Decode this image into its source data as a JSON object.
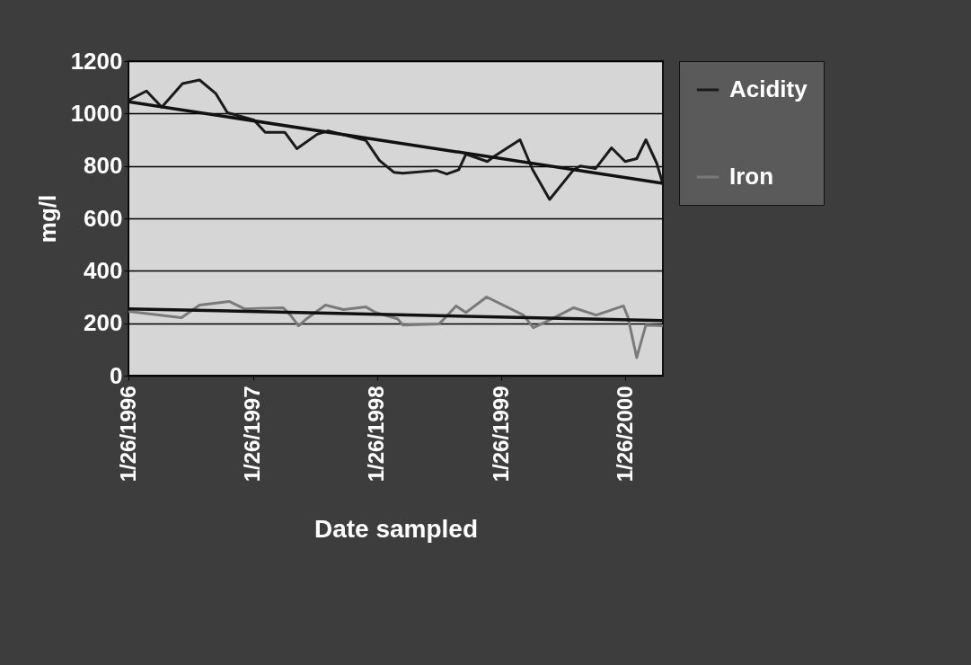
{
  "chart_data": {
    "type": "line",
    "xlabel": "Date sampled",
    "ylabel": "mg/l",
    "xlim": [
      "1996-01-26",
      "2000-05-15"
    ],
    "xticks": [
      {
        "value": "1996-01-26",
        "label": "1/26/1996"
      },
      {
        "value": "1997-01-26",
        "label": "1/26/1997"
      },
      {
        "value": "1998-01-26",
        "label": "1/26/1998"
      },
      {
        "value": "1999-01-26",
        "label": "1/26/1999"
      },
      {
        "value": "2000-01-26",
        "label": "1/26/2000"
      }
    ],
    "ylim": [
      0,
      1200
    ],
    "yticks": [
      0,
      200,
      400,
      600,
      800,
      1000,
      1200
    ],
    "grid": "y",
    "legend": "right",
    "series": [
      {
        "name": "Acidity",
        "color": "#1a1a1a",
        "x": [
          "1996-01-26",
          "1996-03-19",
          "1996-05-03",
          "1996-07-03",
          "1996-08-22",
          "1996-10-09",
          "1996-11-12",
          "1997-01-28",
          "1997-03-03",
          "1997-04-30",
          "1997-06-04",
          "1997-08-03",
          "1997-09-04",
          "1997-12-24",
          "1998-02-02",
          "1998-03-16",
          "1998-04-12",
          "1998-07-19",
          "1998-08-19",
          "1998-09-23",
          "1998-10-14",
          "1998-12-16",
          "1999-01-07",
          "1999-03-22",
          "1999-04-28",
          "1999-06-17",
          "1999-08-25",
          "1999-09-15",
          "1999-10-30",
          "1999-12-16",
          "2000-01-25",
          "2000-02-28",
          "2000-03-26",
          "2000-04-27",
          "2000-05-15"
        ],
        "values": [
          1050,
          1086,
          1024,
          1114,
          1128,
          1076,
          1003,
          976,
          928,
          928,
          866,
          921,
          934,
          897,
          821,
          776,
          772,
          783,
          769,
          786,
          845,
          817,
          838,
          900,
          786,
          672,
          783,
          800,
          790,
          869,
          817,
          828,
          900,
          810,
          731
        ]
      },
      {
        "name": "Iron",
        "color": "#7a7a7a",
        "x": [
          "1996-01-26",
          "1996-06-30",
          "1996-08-22",
          "1996-11-17",
          "1997-01-01",
          "1997-04-25",
          "1997-05-16",
          "1997-06-09",
          "1997-06-30",
          "1997-08-27",
          "1997-10-19",
          "1997-12-24",
          "1998-01-22",
          "1998-03-27",
          "1998-04-12",
          "1998-07-26",
          "1998-08-09",
          "1998-09-15",
          "1998-10-14",
          "1998-12-14",
          "1999-04-01",
          "1999-04-30",
          "1999-06-09",
          "1999-08-27",
          "1999-11-01",
          "2000-01-20",
          "2000-02-02",
          "2000-02-28",
          "2000-03-26",
          "2000-05-15"
        ],
        "values": [
          245,
          221,
          269,
          283,
          255,
          259,
          231,
          190,
          214,
          269,
          252,
          262,
          241,
          217,
          193,
          197,
          214,
          266,
          241,
          300,
          231,
          183,
          207,
          259,
          231,
          266,
          224,
          69,
          193,
          190
        ]
      },
      {
        "type": "line",
        "color": "#111111",
        "x": [
          "1996-01-26",
          "2000-05-15"
        ],
        "values": [
          1045,
          734
        ]
      },
      {
        "type": "line",
        "color": "#111111",
        "x": [
          "1996-01-26",
          "2000-05-15"
        ],
        "values": [
          255,
          210
        ]
      }
    ]
  }
}
